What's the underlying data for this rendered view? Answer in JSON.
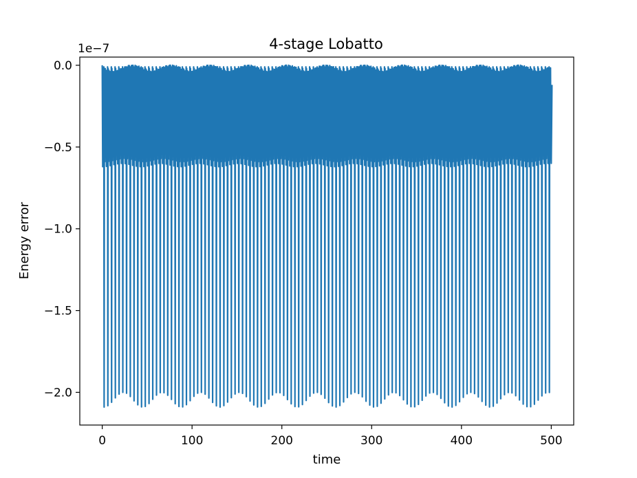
{
  "chart_data": {
    "type": "line",
    "title": "4-stage Lobatto",
    "xlabel": "time",
    "ylabel": "Energy error",
    "y_offset_text": "1e−7",
    "xlim": [
      -25,
      525
    ],
    "ylim": [
      -2.2,
      0.05
    ],
    "y_scale_exponent": -7,
    "xticks": [
      0,
      100,
      200,
      300,
      400,
      500
    ],
    "xtick_labels": [
      "0",
      "100",
      "200",
      "300",
      "400",
      "500"
    ],
    "yticks": [
      0.0,
      -0.5,
      -1.0,
      -1.5,
      -2.0
    ],
    "ytick_labels": [
      "0.0",
      "−0.5",
      "−1.0",
      "−1.5",
      "−2.0"
    ],
    "grid": false,
    "series": [
      {
        "color": "#1f77b4",
        "x_range": [
          0,
          500
        ],
        "y_max": 0.0,
        "y_min": -2.09,
        "oscillation_period": 4.15,
        "dense_band": [
          -0.6,
          0.0
        ],
        "envelope_period": 43
      }
    ]
  }
}
